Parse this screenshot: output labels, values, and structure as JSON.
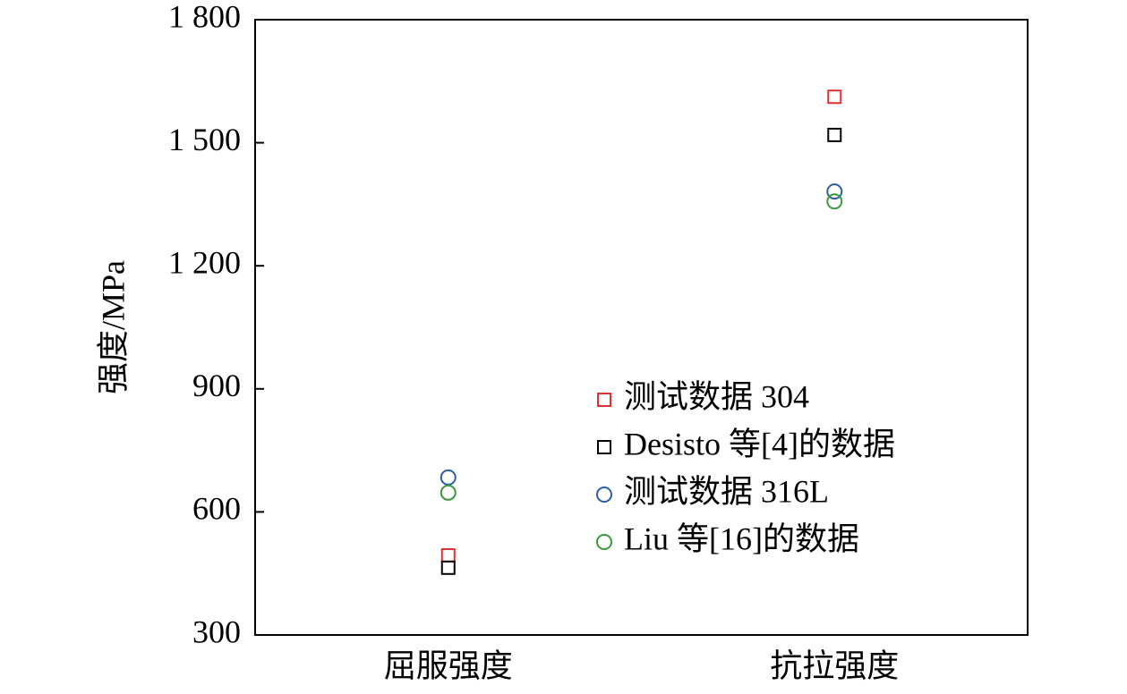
{
  "chart_data": {
    "type": "scatter",
    "y_label": "强度/MPa",
    "categories": [
      "屈服强度",
      "抗拉强度"
    ],
    "series": [
      {
        "name": "测试数据 304",
        "color": "#e03030",
        "marker": "square",
        "values": [
          494,
          1612
        ]
      },
      {
        "name": "Desisto 等[4]的数据",
        "color": "#000000",
        "marker": "square",
        "values": [
          464,
          1519
        ]
      },
      {
        "name": "测试数据 316L",
        "color": "#2b5ea8",
        "marker": "circle",
        "values": [
          684,
          1381
        ]
      },
      {
        "name": "Liu 等[16]的数据",
        "color": "#3a9a3a",
        "marker": "circle",
        "values": [
          647,
          1357
        ]
      }
    ],
    "ylim": [
      300,
      1800
    ],
    "yticks": [
      300,
      600,
      900,
      {
        "value": 1200,
        "label": "1 200"
      },
      {
        "value": 1500,
        "label": "1 500"
      },
      {
        "value": 1800,
        "label": "1 800"
      }
    ],
    "legend": "lower-right"
  }
}
